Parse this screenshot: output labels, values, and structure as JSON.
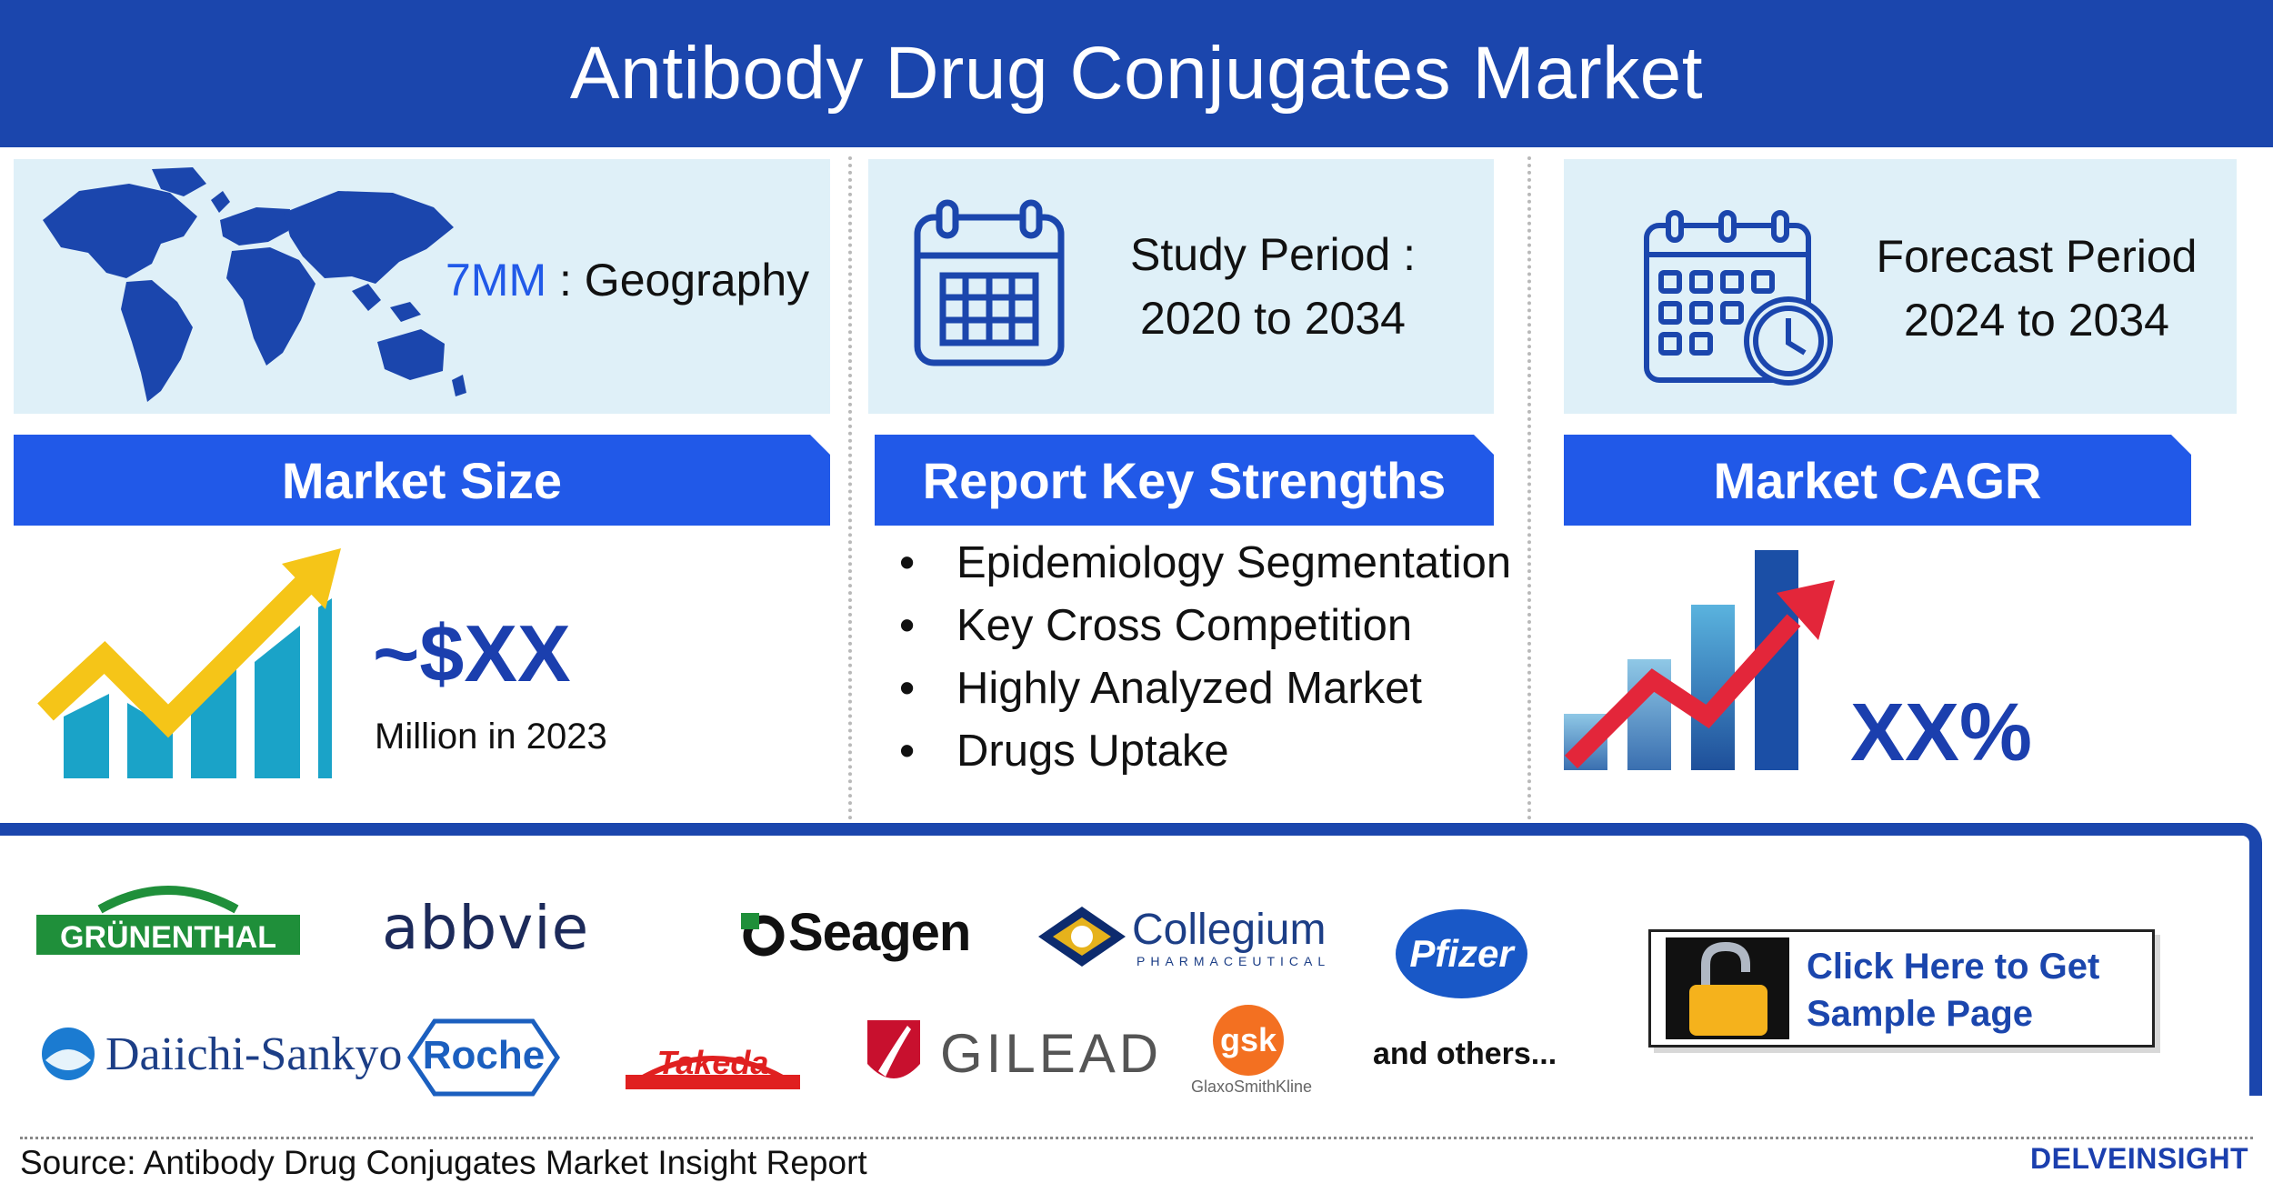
{
  "header": {
    "title": "Antibody Drug Conjugates Market"
  },
  "geography": {
    "value": "7MM",
    "label": ": Geography"
  },
  "study_period": {
    "label": "Study Period :",
    "value": "2020 to 2034"
  },
  "forecast_period": {
    "label": "Forecast Period",
    "value": "2024 to 2034"
  },
  "market_size": {
    "heading": "Market Size",
    "value": "~$XX",
    "note": "Million in 2023"
  },
  "key_strengths": {
    "heading": "Report Key Strengths",
    "items": [
      "Epidemiology Segmentation",
      "Key Cross Competition",
      "Highly Analyzed Market",
      "Drugs Uptake"
    ]
  },
  "market_cagr": {
    "heading": "Market CAGR",
    "value": "XX%"
  },
  "companies": {
    "grunenthal": "GRÜNENTHAL",
    "abbvie": "abbvie",
    "seagen": "Seagen",
    "collegium": "Collegium",
    "collegium_sub": "PHARMACEUTICAL",
    "pfizer": "Pfizer",
    "daiichi": "Daiichi-Sankyo",
    "roche": "Roche",
    "takeda": "Takeda",
    "gilead": "GILEAD",
    "gsk": "gsk",
    "gsk_sub": "GlaxoSmithKline",
    "others": "and others..."
  },
  "cta": {
    "line1": "Click Here to Get",
    "line2": "Sample Page"
  },
  "footer": {
    "source": "Source: Antibody Drug Conjugates Market Insight Report",
    "brand": "DELVEINSIGHT"
  },
  "icons": [
    "world-map-icon",
    "calendar-icon",
    "calendar-clock-icon",
    "growth-chart-icon",
    "cagr-chart-icon",
    "lock-icon"
  ],
  "colors": {
    "header": "#1b46ad",
    "bar": "#2159e8",
    "tile": "#dff0f8",
    "accent_value": "#1b3fae",
    "chart_teal": "#1aa3c8",
    "arrow_yellow": "#f5c518",
    "arrow_red": "#e3263a"
  }
}
